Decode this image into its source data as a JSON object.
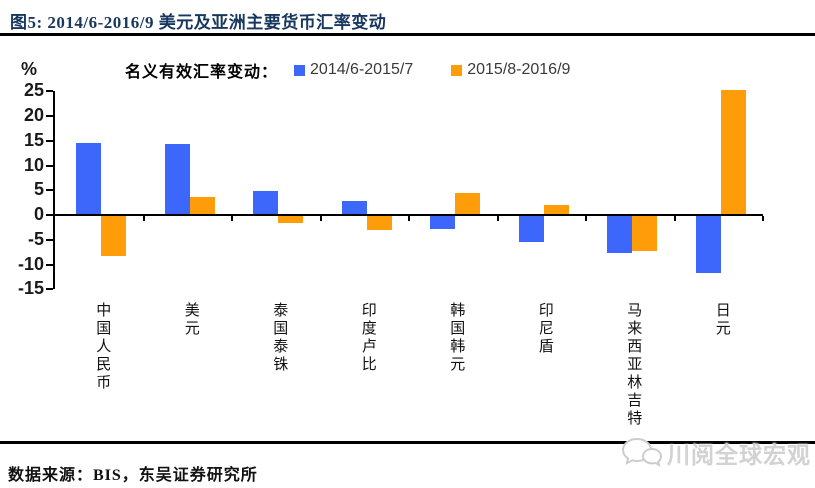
{
  "header": {
    "title": "图5:  2014/6-2016/9 美元及亚洲主要货币汇率变动"
  },
  "chart_data": {
    "type": "bar",
    "title": "2014/6-2016/9 美元及亚洲主要货币汇率变动",
    "legend_label": "名义有效汇率变动：",
    "ylabel": "%",
    "categories": [
      "中国人民币",
      "美元",
      "泰国泰铢",
      "印度卢比",
      "韩国韩元",
      "印尼盾",
      "马来西亚林吉特",
      "日元"
    ],
    "series": [
      {
        "name": "2014/6-2015/7",
        "color": "#3D67FB",
        "values": [
          14.5,
          14.4,
          4.8,
          2.8,
          -2.9,
          -5.4,
          -7.6,
          -11.7
        ]
      },
      {
        "name": "2015/8-2016/9",
        "color": "#FF9C0A",
        "values": [
          -8.2,
          3.7,
          -1.6,
          -3.0,
          4.5,
          2.0,
          -7.3,
          25.2
        ]
      }
    ],
    "yticks": [
      25,
      20,
      15,
      10,
      5,
      0,
      -5,
      -10,
      -15
    ],
    "ylim": [
      -15,
      25
    ],
    "grid": false,
    "legend_position": "top-center"
  },
  "footer": {
    "source": "数据来源：BIS，东吴证券研究所",
    "watermark": "川阅全球宏观"
  }
}
